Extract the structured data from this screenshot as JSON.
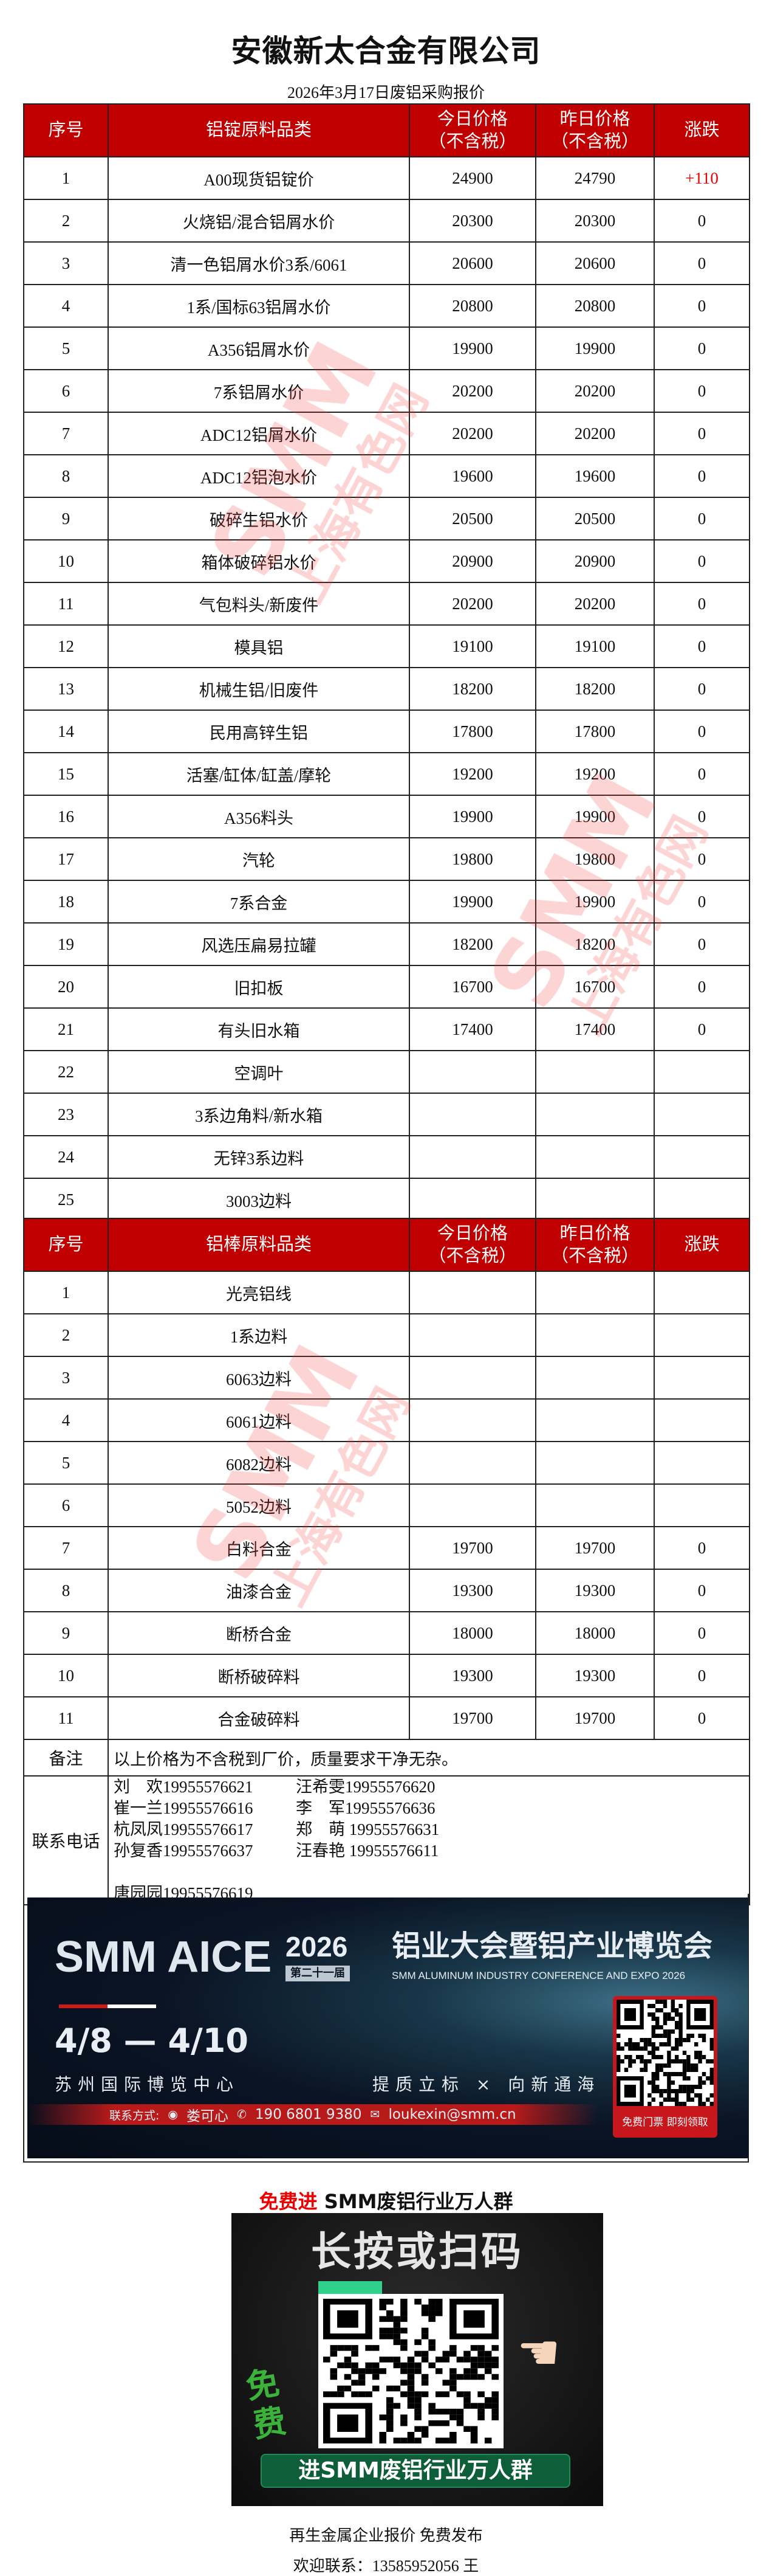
{
  "header": {
    "company": "安徽新太合金有限公司",
    "subtitle": "2026年3月17日废铝采购报价"
  },
  "table1": {
    "columns": [
      "序号",
      "铝锭原料品类",
      "今日价格\n（不含税）",
      "昨日价格\n（不含税）",
      "涨跌"
    ],
    "rows": [
      [
        "1",
        "A00现货铝锭价",
        "24900",
        "24790",
        "+110"
      ],
      [
        "2",
        "火烧铝/混合铝屑水价",
        "20300",
        "20300",
        "0"
      ],
      [
        "3",
        "清一色铝屑水价3系/6061",
        "20600",
        "20600",
        "0"
      ],
      [
        "4",
        "1系/国标63铝屑水价",
        "20800",
        "20800",
        "0"
      ],
      [
        "5",
        "A356铝屑水价",
        "19900",
        "19900",
        "0"
      ],
      [
        "6",
        "7系铝屑水价",
        "20200",
        "20200",
        "0"
      ],
      [
        "7",
        "ADC12铝屑水价",
        "20200",
        "20200",
        "0"
      ],
      [
        "8",
        "ADC12铝泡水价",
        "19600",
        "19600",
        "0"
      ],
      [
        "9",
        "破碎生铝水价",
        "20500",
        "20500",
        "0"
      ],
      [
        "10",
        "箱体破碎铝水价",
        "20900",
        "20900",
        "0"
      ],
      [
        "11",
        "气包料头/新废件",
        "20200",
        "20200",
        "0"
      ],
      [
        "12",
        "模具铝",
        "19100",
        "19100",
        "0"
      ],
      [
        "13",
        "机械生铝/旧废件",
        "18200",
        "18200",
        "0"
      ],
      [
        "14",
        "民用高锌生铝",
        "17800",
        "17800",
        "0"
      ],
      [
        "15",
        "活塞/缸体/缸盖/摩轮",
        "19200",
        "19200",
        "0"
      ],
      [
        "16",
        "A356料头",
        "19900",
        "19900",
        "0"
      ],
      [
        "17",
        "汽轮",
        "19800",
        "19800",
        "0"
      ],
      [
        "18",
        "7系合金",
        "19900",
        "19900",
        "0"
      ],
      [
        "19",
        "风选压扁易拉罐",
        "18200",
        "18200",
        "0"
      ],
      [
        "20",
        "旧扣板",
        "16700",
        "16700",
        "0"
      ],
      [
        "21",
        "有头旧水箱",
        "17400",
        "17400",
        "0"
      ],
      [
        "22",
        "空调叶",
        "",
        "",
        ""
      ],
      [
        "23",
        "3系边角料/新水箱",
        "",
        "",
        ""
      ],
      [
        "24",
        "无锌3系边料",
        "",
        "",
        ""
      ],
      [
        "25",
        "3003边料",
        "",
        "",
        ""
      ]
    ]
  },
  "table2": {
    "columns": [
      "序号",
      "铝棒原料品类",
      "今日价格\n（不含税）",
      "昨日价格\n（不含税）",
      "涨跌"
    ],
    "rows": [
      [
        "1",
        "光亮铝线",
        "",
        "",
        ""
      ],
      [
        "2",
        "1系边料",
        "",
        "",
        ""
      ],
      [
        "3",
        "6063边料",
        "",
        "",
        ""
      ],
      [
        "4",
        "6061边料",
        "",
        "",
        ""
      ],
      [
        "5",
        "6082边料",
        "",
        "",
        ""
      ],
      [
        "6",
        "5052边料",
        "",
        "",
        ""
      ],
      [
        "7",
        "白料合金",
        "19700",
        "19700",
        "0"
      ],
      [
        "8",
        "油漆合金",
        "19300",
        "19300",
        "0"
      ],
      [
        "9",
        "断桥合金",
        "18000",
        "18000",
        "0"
      ],
      [
        "10",
        "断桥破碎料",
        "19300",
        "19300",
        "0"
      ],
      [
        "11",
        "合金破碎料",
        "19700",
        "19700",
        "0"
      ]
    ],
    "remarks_label": "备注",
    "remarks": "以上价格为不含税到厂价，质量要求干净无杂。",
    "contacts_label": "联系电话",
    "contacts": [
      [
        "刘　欢19955576621",
        "汪希雯19955576620"
      ],
      [
        "崔一兰19955576616",
        "李　军19955576636"
      ],
      [
        "杭凤凤19955576617",
        "郑　萌 19955576631"
      ],
      [
        "孙复香19955576637",
        "汪春艳 19955576611"
      ]
    ],
    "contact_last": "唐园园19955576619"
  },
  "colors": {
    "header_bg": "#c00000",
    "rise": "#ee0000",
    "watermark": "#f03c3c"
  },
  "watermark": {
    "line1": "SMM",
    "line2": "上海有色网"
  },
  "banner": {
    "logo": "SMM AICE",
    "year": "2026",
    "edition": "第二十一届",
    "title_cn": "铝业大会暨铝产业博览会",
    "title_en": "SMM ALUMINUM INDUSTRY CONFERENCE AND EXPO 2026",
    "dates": "4/8 — 4/10",
    "venue": "苏州国际博览中心",
    "slogan": "提质立标 × 向新通海",
    "contact_label": "联系方式:",
    "contact_name": "娄可心",
    "contact_phone": "190 6801 9380",
    "contact_email": "loukexin@smm.cn",
    "qr_caption": "免费门票 即刻领取"
  },
  "promo": {
    "title_red": "免费进",
    "title_rest": " SMM废铝行业万人群",
    "headline": "长按或扫码",
    "free": "免费",
    "button": "进SMM废铝行业万人群"
  },
  "footer": {
    "line1": "再生金属企业报价  免费发布",
    "line2": "欢迎联系：13585952056  王"
  }
}
